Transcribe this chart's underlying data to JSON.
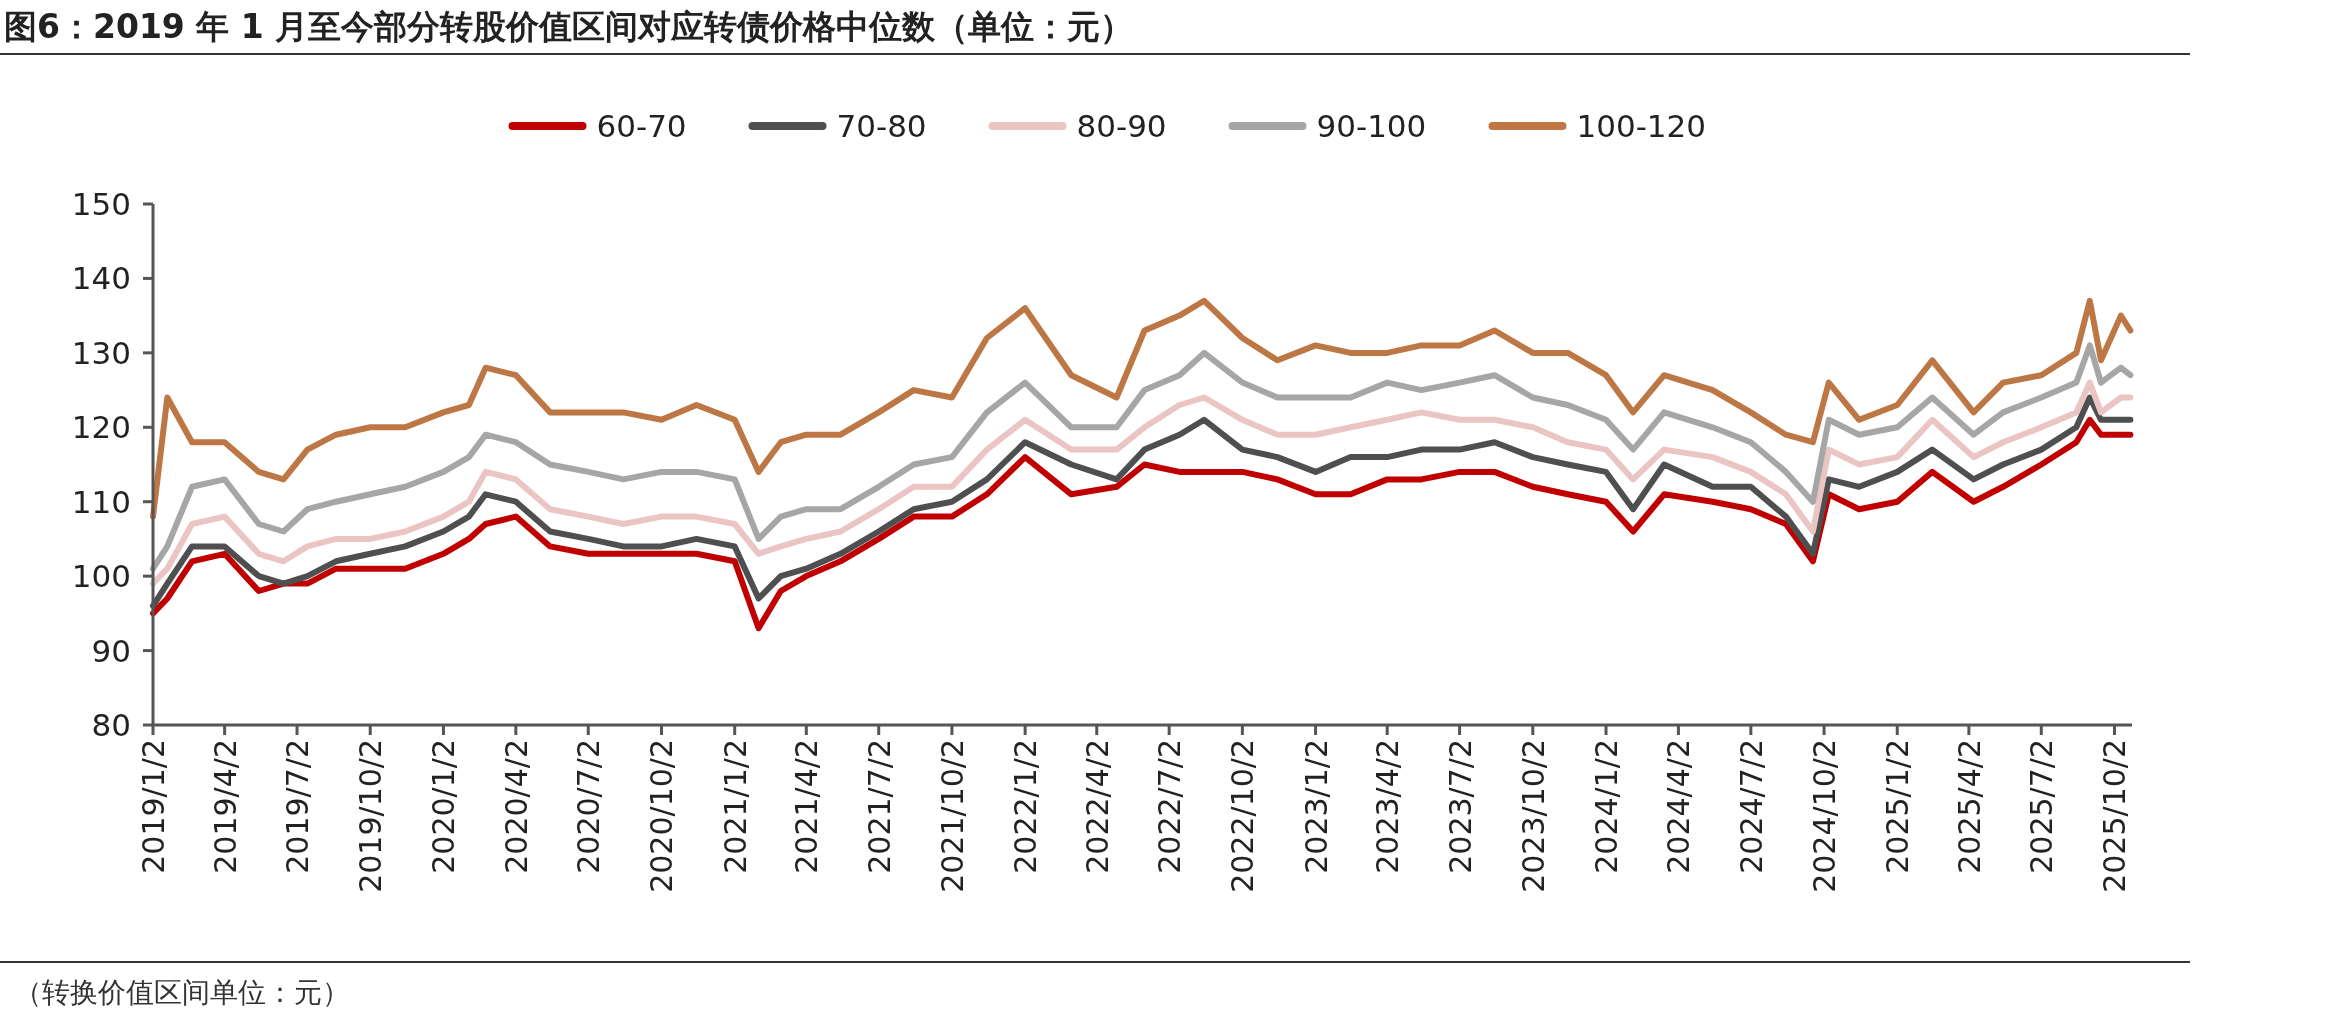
{
  "chart_data": {
    "type": "line",
    "title": "图6：2019 年 1 月至今部分转股价值区间对应转债价格中位数（单位：元）",
    "annotations": [
      "（转换价值区间单位：元）"
    ],
    "x": [
      "2019-01-02",
      "2019-01-20",
      "2019-02-20",
      "2019-04-02",
      "2019-05-15",
      "2019-06-15",
      "2019-07-15",
      "2019-08-20",
      "2019-10-02",
      "2019-11-15",
      "2020-01-02",
      "2020-02-03",
      "2020-02-24",
      "2020-04-02",
      "2020-05-15",
      "2020-07-02",
      "2020-08-15",
      "2020-10-02",
      "2020-11-15",
      "2021-01-02",
      "2021-02-01",
      "2021-03-01",
      "2021-04-02",
      "2021-05-15",
      "2021-07-02",
      "2021-08-15",
      "2021-10-02",
      "2021-11-15",
      "2022-01-02",
      "2022-03-01",
      "2022-04-27",
      "2022-06-01",
      "2022-07-15",
      "2022-08-15",
      "2022-10-02",
      "2022-11-15",
      "2023-01-02",
      "2023-02-15",
      "2023-04-02",
      "2023-05-15",
      "2023-07-02",
      "2023-08-15",
      "2023-10-02",
      "2023-11-15",
      "2024-01-02",
      "2024-02-05",
      "2024-03-15",
      "2024-05-15",
      "2024-07-02",
      "2024-08-15",
      "2024-09-18",
      "2024-10-08",
      "2024-11-15",
      "2025-01-02",
      "2025-02-15",
      "2025-04-08",
      "2025-05-15",
      "2025-07-02",
      "2025-08-15",
      "2025-09-01",
      "2025-09-15",
      "2025-10-10",
      "2025-10-22"
    ],
    "series": [
      {
        "name": "60-70",
        "color": "#c00000",
        "values": [
          95,
          97,
          102,
          103,
          98,
          99,
          99,
          101,
          101,
          101,
          103,
          105,
          107,
          108,
          104,
          103,
          103,
          103,
          103,
          102,
          93,
          98,
          100,
          102,
          105,
          108,
          108,
          111,
          116,
          111,
          112,
          115,
          114,
          114,
          114,
          113,
          111,
          111,
          113,
          113,
          114,
          114,
          112,
          111,
          110,
          106,
          111,
          110,
          109,
          107,
          102,
          111,
          109,
          110,
          114,
          110,
          112,
          115,
          118,
          121,
          119,
          119,
          119
        ]
      },
      {
        "name": "70-80",
        "color": "#4d4f51",
        "values": [
          96,
          99,
          104,
          104,
          100,
          99,
          100,
          102,
          103,
          104,
          106,
          108,
          111,
          110,
          106,
          105,
          104,
          104,
          105,
          104,
          97,
          100,
          101,
          103,
          106,
          109,
          110,
          113,
          118,
          115,
          113,
          117,
          119,
          121,
          117,
          116,
          114,
          116,
          116,
          117,
          117,
          118,
          116,
          115,
          114,
          109,
          115,
          112,
          112,
          108,
          103,
          113,
          112,
          114,
          117,
          113,
          115,
          117,
          120,
          124,
          121,
          121,
          121
        ]
      },
      {
        "name": "80-90",
        "color": "#ebc4c4",
        "values": [
          99,
          101,
          107,
          108,
          103,
          102,
          104,
          105,
          105,
          106,
          108,
          110,
          114,
          113,
          109,
          108,
          107,
          108,
          108,
          107,
          103,
          104,
          105,
          106,
          109,
          112,
          112,
          117,
          121,
          117,
          117,
          120,
          123,
          124,
          121,
          119,
          119,
          120,
          121,
          122,
          121,
          121,
          120,
          118,
          117,
          113,
          117,
          116,
          114,
          111,
          106,
          117,
          115,
          116,
          121,
          116,
          118,
          120,
          122,
          126,
          122,
          124,
          124
        ]
      },
      {
        "name": "90-100",
        "color": "#a6a6a6",
        "values": [
          101,
          104,
          112,
          113,
          107,
          106,
          109,
          110,
          111,
          112,
          114,
          116,
          119,
          118,
          115,
          114,
          113,
          114,
          114,
          113,
          105,
          108,
          109,
          109,
          112,
          115,
          116,
          122,
          126,
          120,
          120,
          125,
          127,
          130,
          126,
          124,
          124,
          124,
          126,
          125,
          126,
          127,
          124,
          123,
          121,
          117,
          122,
          120,
          118,
          114,
          110,
          121,
          119,
          120,
          124,
          119,
          122,
          124,
          126,
          131,
          126,
          128,
          127
        ]
      },
      {
        "name": "100-120",
        "color": "#bd7745",
        "values": [
          108,
          124,
          118,
          118,
          114,
          113,
          117,
          119,
          120,
          120,
          122,
          123,
          128,
          127,
          122,
          122,
          122,
          121,
          123,
          121,
          114,
          118,
          119,
          119,
          122,
          125,
          124,
          132,
          136,
          127,
          124,
          133,
          135,
          137,
          132,
          129,
          131,
          130,
          130,
          131,
          131,
          133,
          130,
          130,
          127,
          122,
          127,
          125,
          122,
          119,
          118,
          126,
          121,
          123,
          129,
          122,
          126,
          127,
          130,
          137,
          129,
          135,
          133
        ]
      }
    ],
    "xlim": [
      "2019-01-02",
      "2025-10-24"
    ],
    "xticks": [
      {
        "value": "2019-01-02",
        "label": "2019/1/2"
      },
      {
        "value": "2019-04-02",
        "label": "2019/4/2"
      },
      {
        "value": "2019-07-02",
        "label": "2019/7/2"
      },
      {
        "value": "2019-10-02",
        "label": "2019/10/2"
      },
      {
        "value": "2020-01-02",
        "label": "2020/1/2"
      },
      {
        "value": "2020-04-02",
        "label": "2020/4/2"
      },
      {
        "value": "2020-07-02",
        "label": "2020/7/2"
      },
      {
        "value": "2020-10-02",
        "label": "2020/10/2"
      },
      {
        "value": "2021-01-02",
        "label": "2021/1/2"
      },
      {
        "value": "2021-04-02",
        "label": "2021/4/2"
      },
      {
        "value": "2021-07-02",
        "label": "2021/7/2"
      },
      {
        "value": "2021-10-02",
        "label": "2021/10/2"
      },
      {
        "value": "2022-01-02",
        "label": "2022/1/2"
      },
      {
        "value": "2022-04-02",
        "label": "2022/4/2"
      },
      {
        "value": "2022-07-02",
        "label": "2022/7/2"
      },
      {
        "value": "2022-10-02",
        "label": "2022/10/2"
      },
      {
        "value": "2023-01-02",
        "label": "2023/1/2"
      },
      {
        "value": "2023-04-02",
        "label": "2023/4/2"
      },
      {
        "value": "2023-07-02",
        "label": "2023/7/2"
      },
      {
        "value": "2023-10-02",
        "label": "2023/10/2"
      },
      {
        "value": "2024-01-02",
        "label": "2024/1/2"
      },
      {
        "value": "2024-04-02",
        "label": "2024/4/2"
      },
      {
        "value": "2024-07-02",
        "label": "2024/7/2"
      },
      {
        "value": "2024-10-02",
        "label": "2024/10/2"
      },
      {
        "value": "2025-01-02",
        "label": "2025/1/2"
      },
      {
        "value": "2025-04-02",
        "label": "2025/4/2"
      },
      {
        "value": "2025-07-02",
        "label": "2025/7/2"
      },
      {
        "value": "2025-10-02",
        "label": "2025/10/2"
      }
    ],
    "ylim": [
      80,
      150
    ],
    "yticks": [
      80,
      90,
      100,
      110,
      120,
      130,
      140,
      150
    ],
    "legend": "top",
    "grid": false,
    "marker": "none",
    "line_style": "solid"
  }
}
